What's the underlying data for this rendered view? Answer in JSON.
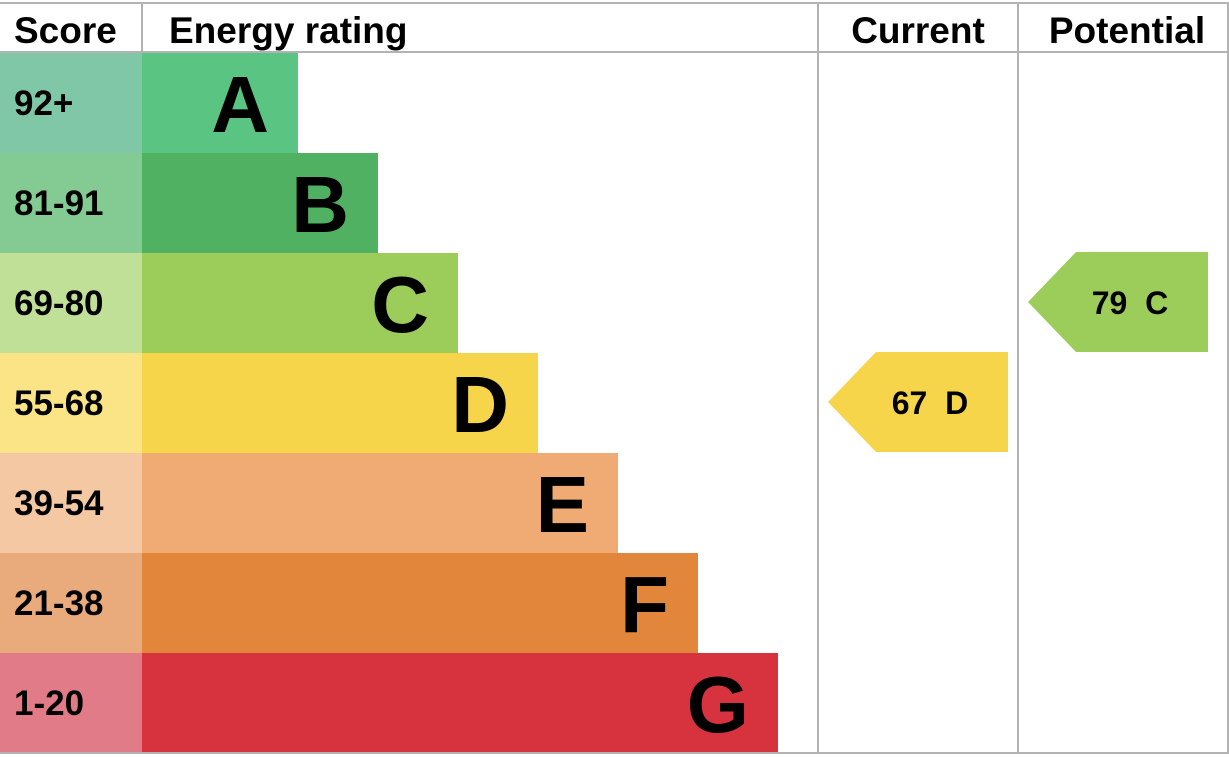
{
  "headers": {
    "score": "Score",
    "energy_rating": "Energy rating",
    "current": "Current",
    "potential": "Potential"
  },
  "chart_data": {
    "type": "energy-rating",
    "bands": [
      {
        "letter": "A",
        "range": "92+",
        "color": "#5ac583",
        "score_color": "#7fc7a6"
      },
      {
        "letter": "B",
        "range": "81-91",
        "color": "#51b163",
        "score_color": "#83ca93"
      },
      {
        "letter": "C",
        "range": "69-80",
        "color": "#9ccc59",
        "score_color": "#c1e097"
      },
      {
        "letter": "D",
        "range": "55-68",
        "color": "#f7d54a",
        "score_color": "#fae486"
      },
      {
        "letter": "E",
        "range": "39-54",
        "color": "#efab73",
        "score_color": "#f3c8a3"
      },
      {
        "letter": "F",
        "range": "21-38",
        "color": "#e1863b",
        "score_color": "#e9ab7c"
      },
      {
        "letter": "G",
        "range": "1-20",
        "color": "#d6333f",
        "score_color": "#e27b88"
      }
    ],
    "current": {
      "value": 67,
      "letter": "D",
      "label": "67  D",
      "color": "#f7d54a"
    },
    "potential": {
      "value": 79,
      "letter": "C",
      "label": "79  C",
      "color": "#9ccc59"
    }
  }
}
